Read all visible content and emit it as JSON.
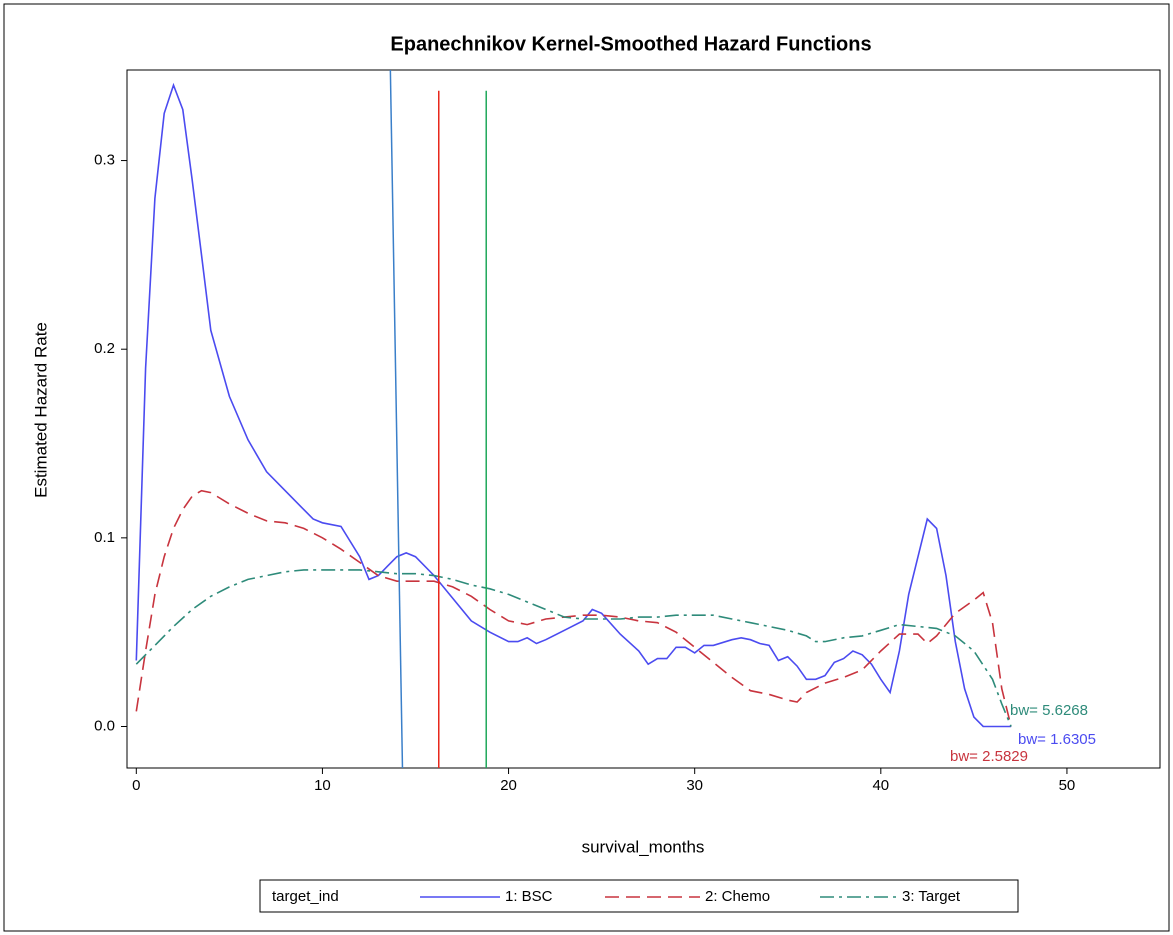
{
  "chart_data": {
    "type": "line",
    "title": "Epanechnikov Kernel-Smoothed Hazard Functions",
    "x_label": "survival_months",
    "y_label": "Estimated Hazard Rate",
    "xlim": [
      -0.5,
      55
    ],
    "ylim": [
      -0.022,
      0.348
    ],
    "xticks": [
      0,
      10,
      20,
      30,
      40,
      50
    ],
    "yticks": [
      {
        "value": 0,
        "label": "0.0"
      },
      0.1,
      0.2,
      0.3
    ],
    "grid": false,
    "legend_title": "target_ind",
    "legend_position": "bottom",
    "series": [
      {
        "name": "1: BSC",
        "color": "#4b4bf0",
        "dash": "solid",
        "x": [
          0,
          0.5,
          1,
          1.5,
          2,
          2.5,
          3,
          3.5,
          4,
          5,
          6,
          7,
          8,
          9,
          9.5,
          10,
          11,
          12,
          12.5,
          13,
          13.5,
          14,
          14.5,
          15,
          16,
          17,
          18,
          19,
          20,
          20.5,
          21,
          21.5,
          22,
          23,
          24,
          24.5,
          25,
          26,
          27,
          27.5,
          28,
          28.5,
          29,
          29.5,
          30,
          30.5,
          31,
          32,
          32.5,
          33,
          33.5,
          34,
          34.5,
          35,
          35.5,
          36,
          36.5,
          37,
          37.5,
          38,
          38.5,
          39,
          39.5,
          40,
          40.5,
          41,
          41.5,
          42,
          42.5,
          43,
          43.5,
          44,
          44.5,
          45,
          45.5,
          46,
          46.5,
          47
        ],
        "values": [
          0.035,
          0.19,
          0.28,
          0.325,
          0.34,
          0.327,
          0.29,
          0.25,
          0.21,
          0.175,
          0.152,
          0.135,
          0.125,
          0.115,
          0.11,
          0.108,
          0.106,
          0.09,
          0.078,
          0.08,
          0.085,
          0.09,
          0.092,
          0.09,
          0.08,
          0.068,
          0.056,
          0.05,
          0.045,
          0.045,
          0.047,
          0.044,
          0.046,
          0.051,
          0.056,
          0.062,
          0.06,
          0.049,
          0.04,
          0.033,
          0.036,
          0.036,
          0.042,
          0.042,
          0.039,
          0.043,
          0.043,
          0.046,
          0.047,
          0.046,
          0.044,
          0.043,
          0.035,
          0.037,
          0.032,
          0.025,
          0.025,
          0.027,
          0.034,
          0.036,
          0.04,
          0.038,
          0.033,
          0.025,
          0.018,
          0.04,
          0.07,
          0.09,
          0.11,
          0.105,
          0.08,
          0.045,
          0.02,
          0.005,
          0,
          0,
          0,
          0
        ]
      },
      {
        "name": "2: Chemo",
        "color": "#c8343e",
        "dash": "dash",
        "x": [
          0,
          0.5,
          1,
          1.5,
          2,
          2.5,
          3,
          3.5,
          4,
          5,
          6,
          7,
          8,
          9,
          10,
          11,
          12,
          13,
          14,
          15,
          16,
          17,
          18,
          19,
          20,
          21,
          22,
          23,
          24,
          25,
          26,
          27,
          28,
          29,
          30,
          31,
          32,
          33,
          34,
          35,
          35.5,
          36,
          37,
          38,
          39,
          40,
          41,
          42,
          42.5,
          43,
          44,
          45,
          45.5,
          46,
          46.5,
          47
        ],
        "values": [
          0.008,
          0.04,
          0.07,
          0.09,
          0.105,
          0.115,
          0.122,
          0.125,
          0.124,
          0.118,
          0.113,
          0.109,
          0.108,
          0.105,
          0.1,
          0.094,
          0.087,
          0.08,
          0.077,
          0.077,
          0.077,
          0.074,
          0.069,
          0.062,
          0.056,
          0.054,
          0.057,
          0.058,
          0.059,
          0.059,
          0.058,
          0.056,
          0.055,
          0.05,
          0.042,
          0.034,
          0.026,
          0.019,
          0.017,
          0.014,
          0.013,
          0.018,
          0.023,
          0.026,
          0.03,
          0.04,
          0.049,
          0.049,
          0.044,
          0.048,
          0.06,
          0.067,
          0.071,
          0.055,
          0.02,
          0
        ]
      },
      {
        "name": "3: Target",
        "color": "#2e8b7a",
        "dash": "dashdot",
        "x": [
          0,
          1,
          2,
          3,
          4,
          5,
          6,
          7,
          8,
          9,
          10,
          11,
          12,
          13,
          14,
          15,
          16,
          17,
          18,
          19,
          20,
          21,
          22,
          23,
          24,
          25,
          26,
          27,
          28,
          29,
          30,
          31,
          32,
          33,
          34,
          35,
          36,
          36.5,
          37,
          38,
          39,
          40,
          41,
          42,
          43,
          44,
          45,
          46,
          46.5,
          47
        ],
        "values": [
          0.033,
          0.043,
          0.053,
          0.062,
          0.069,
          0.074,
          0.078,
          0.08,
          0.082,
          0.083,
          0.083,
          0.083,
          0.083,
          0.082,
          0.081,
          0.081,
          0.08,
          0.078,
          0.075,
          0.073,
          0.07,
          0.066,
          0.062,
          0.058,
          0.057,
          0.057,
          0.057,
          0.058,
          0.058,
          0.059,
          0.059,
          0.059,
          0.057,
          0.055,
          0.053,
          0.051,
          0.048,
          0.045,
          0.045,
          0.047,
          0.048,
          0.051,
          0.054,
          0.053,
          0.052,
          0.048,
          0.04,
          0.025,
          0.012,
          0
        ]
      }
    ],
    "reference_lines": [
      {
        "color": "#3a7fc9",
        "x": [
          13.65,
          14.3
        ],
        "y": [
          0.348,
          -0.022
        ]
      },
      {
        "color": "#e8261a",
        "x": [
          16.25,
          16.25
        ],
        "y": [
          0.337,
          -0.022
        ]
      },
      {
        "color": "#1fa85a",
        "x": [
          18.8,
          18.8
        ],
        "y": [
          0.337,
          -0.022
        ]
      }
    ],
    "annotations": [
      {
        "text": "bw= 5.6268",
        "color": "#2e8b7a"
      },
      {
        "text": "bw= 1.6305",
        "color": "#4b4bf0"
      },
      {
        "text": "bw= 2.5829",
        "color": "#c8343e"
      }
    ]
  }
}
